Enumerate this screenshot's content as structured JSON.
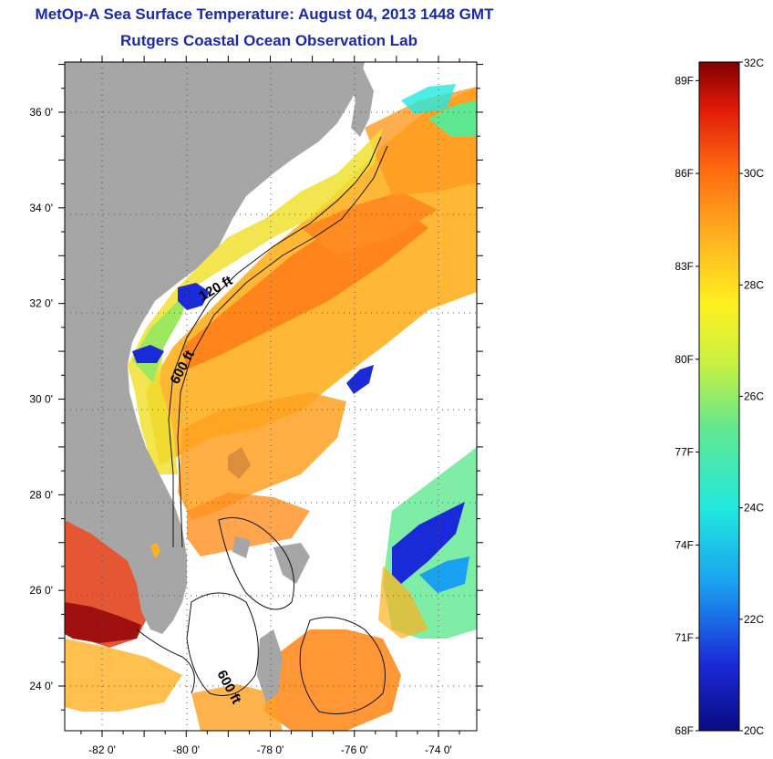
{
  "title": {
    "line1": "MetOp-A Sea Surface Temperature:  August 04, 2013 1448 GMT",
    "line2": "Rutgers Coastal Ocean Observation Lab"
  },
  "axes": {
    "longitude_ticks": [
      {
        "value": -82,
        "label": "-82 0'"
      },
      {
        "value": -80,
        "label": "-80 0'"
      },
      {
        "value": -78,
        "label": "-78 0'"
      },
      {
        "value": -76,
        "label": "-76 0'"
      },
      {
        "value": -74,
        "label": "-74 0'"
      }
    ],
    "latitude_ticks": [
      {
        "value": 24,
        "label": "24 0'"
      },
      {
        "value": 26,
        "label": "26 0'"
      },
      {
        "value": 28,
        "label": "28 0'"
      },
      {
        "value": 30,
        "label": "30 0'"
      },
      {
        "value": 32,
        "label": "32 0'"
      },
      {
        "value": 34,
        "label": "34 0'"
      },
      {
        "value": 36,
        "label": "36 0'"
      }
    ],
    "lon_range": [
      -83,
      -73
    ],
    "lat_range": [
      23,
      37
    ]
  },
  "contour_labels": [
    {
      "text": "120 ft"
    },
    {
      "text": "600 ft"
    },
    {
      "text": "600 ft"
    }
  ],
  "colorbar": {
    "celsius_min": 20,
    "celsius_max": 32,
    "fahrenheit_labels": [
      "89F",
      "86F",
      "83F",
      "80F",
      "77F",
      "74F",
      "71F",
      "68F"
    ],
    "celsius_labels": [
      "32C",
      "30C",
      "28C",
      "26C",
      "24C",
      "22C",
      "20C"
    ],
    "stops": [
      "#0a0a80",
      "#1a2ad8",
      "#1aa0f0",
      "#20e8e0",
      "#60e890",
      "#c8f040",
      "#fff020",
      "#ffb020",
      "#ff6a10",
      "#e01a0a",
      "#800000"
    ]
  },
  "colors": {
    "land": "#a6a6a6",
    "title": "#1a2aa8"
  }
}
